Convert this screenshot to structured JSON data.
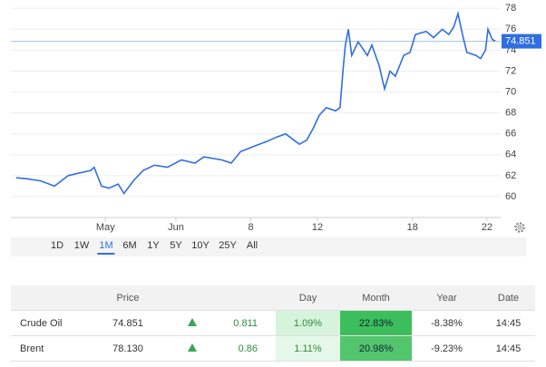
{
  "chart_data": {
    "type": "line",
    "x": [
      1.1,
      3.3,
      6.1,
      8.9,
      11.7,
      14.4,
      16.3,
      17.0,
      18.5,
      20.0,
      21.9,
      23.1,
      25.0,
      27.0,
      29.3,
      32.0,
      34.8,
      37.6,
      39.4,
      43.1,
      45.0,
      46.9,
      49.6,
      52.4,
      54.3,
      56.1,
      58.9,
      60.4,
      61.7,
      63.0,
      64.4,
      66.3,
      67.2,
      67.8,
      68.3,
      68.9,
      69.6,
      70.9,
      72.8,
      73.7,
      75.2,
      76.3,
      77.4,
      78.5,
      80.2,
      81.5,
      82.6,
      84.8,
      86.3,
      88.1,
      89.4,
      90.4,
      91.3,
      92.2,
      93.1,
      95.0,
      95.9,
      96.9,
      97.4,
      98.3,
      98.9
    ],
    "values": [
      61.8,
      61.7,
      61.5,
      61.0,
      62.0,
      62.3,
      62.5,
      62.8,
      61.0,
      60.8,
      61.2,
      60.3,
      61.5,
      62.5,
      63.0,
      62.8,
      63.5,
      63.2,
      63.8,
      63.5,
      63.2,
      64.3,
      64.8,
      65.3,
      65.7,
      66.0,
      65.0,
      65.4,
      66.5,
      67.8,
      68.5,
      68.2,
      68.5,
      72.0,
      74.5,
      76.0,
      73.5,
      74.8,
      73.5,
      74.5,
      72.5,
      70.3,
      72.0,
      71.5,
      73.5,
      73.8,
      75.5,
      75.8,
      75.2,
      76.0,
      75.5,
      76.2,
      77.5,
      75.5,
      73.8,
      73.5,
      73.2,
      74.0,
      76.0,
      75.0,
      74.9
    ],
    "color": "#2f6fe0",
    "last_value": 74.851,
    "xlim": [
      0,
      100
    ],
    "xticks": [
      {
        "value": 19.3,
        "label": "May"
      },
      {
        "value": 33.7,
        "label": "Jun"
      },
      {
        "value": 49.0,
        "label": "8"
      },
      {
        "value": 62.6,
        "label": "12"
      },
      {
        "value": 82.0,
        "label": "18"
      },
      {
        "value": 97.2,
        "label": "22"
      }
    ],
    "ylim": [
      58,
      78.8
    ],
    "yticks": [
      60,
      62,
      64,
      66,
      68,
      70,
      72,
      74,
      76,
      78
    ],
    "grid": true
  },
  "range_buttons": {
    "items": [
      "1D",
      "1W",
      "1M",
      "6M",
      "1Y",
      "5Y",
      "10Y",
      "25Y",
      "All"
    ],
    "selected": 2
  },
  "table": {
    "header": [
      "Price",
      "Day",
      "Month",
      "Year",
      "Date"
    ],
    "rows": [
      [
        "Crude Oil",
        "74.851",
        "0.811",
        "1.09%",
        "22.83%",
        "-8.38%",
        "14:45"
      ],
      [
        "Brent",
        "78.130",
        "0.86",
        "1.11%",
        "20.98%",
        "-9.23%",
        "14:45"
      ]
    ]
  }
}
